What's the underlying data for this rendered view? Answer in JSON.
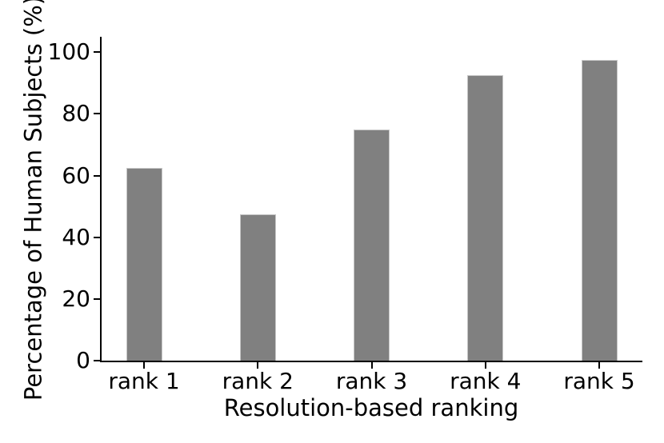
{
  "figure": {
    "background_color": "#ffffff",
    "text_color": "#000000",
    "spine_color": "#000000"
  },
  "chart_data": {
    "type": "bar",
    "title": "",
    "xlabel": "Resolution-based ranking",
    "ylabel": "Percentage of Human Subjects (%)",
    "categories": [
      "rank 1",
      "rank 2",
      "rank 3",
      "rank 4",
      "rank 5"
    ],
    "values": [
      62.5,
      47.5,
      75,
      92.5,
      97.5
    ],
    "yticks": [
      0,
      20,
      40,
      60,
      80,
      100
    ],
    "ylim": [
      0,
      105
    ],
    "bar_color": "#808080",
    "bar_edge_color": "#c6c6c6",
    "grid": false,
    "legend_position": "none"
  }
}
